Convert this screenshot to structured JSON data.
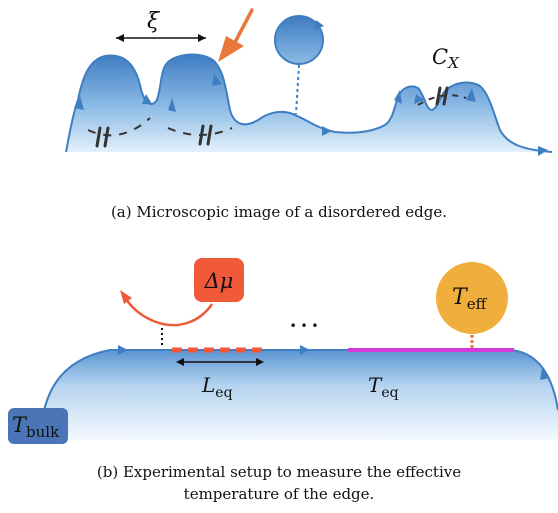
{
  "panel_a": {
    "label_xi": "ξ",
    "label_cx_main": "C",
    "label_cx_sub": "X",
    "caption": "(a) Microscopic image of a disordered edge."
  },
  "panel_b": {
    "label_dmu": "Δμ",
    "label_teff_main": "T",
    "label_teff_sub": "eff",
    "label_leq_main": "L",
    "label_leq_sub": "eq",
    "label_teq_main": "T",
    "label_teq_sub": "eq",
    "label_tbulk_main": "T",
    "label_tbulk_sub": "bulk",
    "ellipsis": "• • •",
    "caption_line1": "(b) Experimental setup to measure the effective",
    "caption_line2": "temperature of the edge."
  },
  "colors": {
    "edge_dark": "#3f7ec0",
    "edge_light": "#dbeaf8",
    "orange": "#e8773a",
    "red_contact": "#f05a3a",
    "teff_fill": "#f0ae3c",
    "magenta": "#d63ad6",
    "tbulk_fill": "#4a76b8",
    "capacitor": "#333333"
  }
}
